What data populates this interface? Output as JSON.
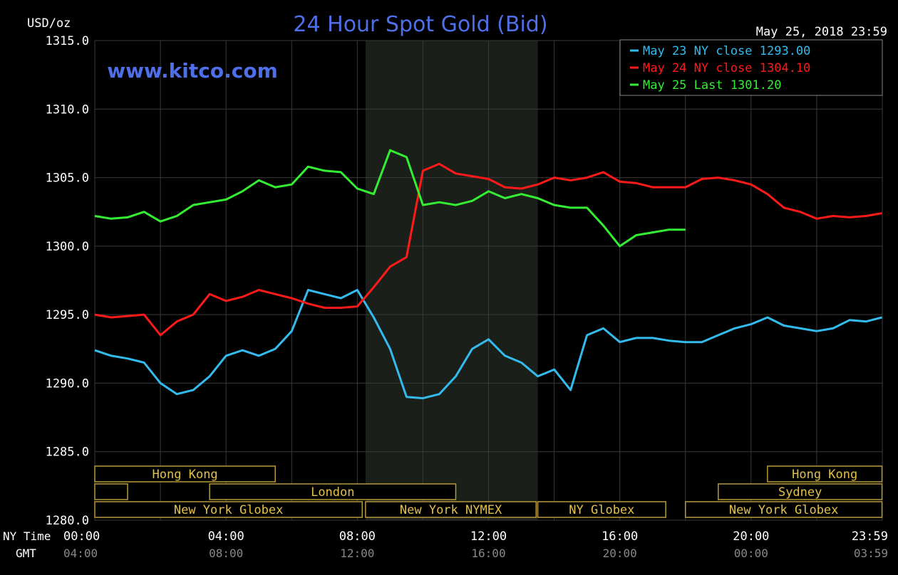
{
  "chart_data": {
    "type": "line",
    "title": "24 Hour Spot Gold (Bid)",
    "watermark": "www.kitco.com",
    "timestamp": "May 25, 2018 23:59",
    "ylabel": "USD/oz",
    "ylim": [
      1280,
      1315
    ],
    "yticks": [
      "1280.0",
      "1285.0",
      "1290.0",
      "1295.0",
      "1300.0",
      "1305.0",
      "1310.0",
      "1315.0"
    ],
    "xlim": [
      0,
      24
    ],
    "xrow_label": "NY Time",
    "xrow2_label": "GMT",
    "xticks_ny": [
      "00:00",
      "04:00",
      "08:00",
      "12:00",
      "16:00",
      "20:00",
      "23:59"
    ],
    "xticks_gmt": [
      "04:00",
      "08:00",
      "12:00",
      "16:00",
      "20:00",
      "00:00",
      "03:59"
    ],
    "shaded_range_hours": [
      8.25,
      13.5
    ],
    "grid": true,
    "legend_position": "top-right",
    "series": [
      {
        "name": "May 23 NY close 1293.00",
        "color": "#33bbee",
        "x": [
          0,
          0.5,
          1,
          1.5,
          2,
          2.5,
          3,
          3.5,
          4,
          4.5,
          5,
          5.5,
          6,
          6.5,
          7,
          7.5,
          8,
          8.5,
          9,
          9.5,
          10,
          10.5,
          11,
          11.5,
          12,
          12.5,
          13,
          13.5,
          14,
          14.5,
          15,
          15.5,
          16,
          16.5,
          17,
          17.5,
          18,
          18.5,
          19,
          19.5,
          20,
          20.5,
          21,
          21.5,
          22,
          22.5,
          23,
          23.5,
          23.99
        ],
        "y": [
          1292.4,
          1292.0,
          1291.8,
          1291.5,
          1290.0,
          1289.2,
          1289.5,
          1290.5,
          1292.0,
          1292.4,
          1292.0,
          1292.5,
          1293.8,
          1296.8,
          1296.5,
          1296.2,
          1296.8,
          1294.8,
          1292.5,
          1289.0,
          1288.9,
          1289.2,
          1290.5,
          1292.5,
          1293.2,
          1292.0,
          1291.5,
          1290.5,
          1291.0,
          1289.5,
          1293.5,
          1294.0,
          1293.0,
          1293.3,
          1293.3,
          1293.1,
          1293.0,
          1293.0,
          1293.5,
          1294.0,
          1294.3,
          1294.8,
          1294.2,
          1294.0,
          1293.8,
          1294.0,
          1294.6,
          1294.5,
          1294.8
        ]
      },
      {
        "name": "May 24 NY close 1304.10",
        "color": "#ff1a1a",
        "x": [
          0,
          0.5,
          1,
          1.5,
          2,
          2.5,
          3,
          3.5,
          4,
          4.5,
          5,
          5.5,
          6,
          6.5,
          7,
          7.5,
          8,
          8.5,
          9,
          9.5,
          10,
          10.5,
          11,
          11.5,
          12,
          12.5,
          13,
          13.5,
          14,
          14.5,
          15,
          15.5,
          16,
          16.5,
          17,
          17.5,
          18,
          18.5,
          19,
          19.5,
          20,
          20.5,
          21,
          21.5,
          22,
          22.5,
          23,
          23.5,
          23.99
        ],
        "y": [
          1295.0,
          1294.8,
          1294.9,
          1295.0,
          1293.5,
          1294.5,
          1295.0,
          1296.5,
          1296.0,
          1296.3,
          1296.8,
          1296.5,
          1296.2,
          1295.8,
          1295.5,
          1295.5,
          1295.6,
          1297.0,
          1298.5,
          1299.2,
          1305.5,
          1306.0,
          1305.3,
          1305.1,
          1304.9,
          1304.3,
          1304.2,
          1304.5,
          1305.0,
          1304.8,
          1305.0,
          1305.4,
          1304.7,
          1304.6,
          1304.3,
          1304.3,
          1304.3,
          1304.9,
          1305.0,
          1304.8,
          1304.5,
          1303.8,
          1302.8,
          1302.5,
          1302.0,
          1302.2,
          1302.1,
          1302.2,
          1302.4
        ]
      },
      {
        "name": "May 25 Last 1301.20",
        "color": "#33ee33",
        "x": [
          0,
          0.5,
          1,
          1.5,
          2,
          2.5,
          3,
          3.5,
          4,
          4.5,
          5,
          5.5,
          6,
          6.5,
          7,
          7.5,
          8,
          8.5,
          9,
          9.5,
          10,
          10.5,
          11,
          11.5,
          12,
          12.5,
          13,
          13.5,
          14,
          14.5,
          15,
          15.5,
          16,
          16.5,
          17,
          17.5,
          18
        ],
        "y": [
          1302.2,
          1302.0,
          1302.1,
          1302.5,
          1301.8,
          1302.2,
          1303.0,
          1303.2,
          1303.4,
          1304.0,
          1304.8,
          1304.3,
          1304.5,
          1305.8,
          1305.5,
          1305.4,
          1304.2,
          1303.8,
          1307.0,
          1306.5,
          1303.0,
          1303.2,
          1303.0,
          1303.3,
          1304.0,
          1303.5,
          1303.8,
          1303.5,
          1303.0,
          1302.8,
          1302.8,
          1301.5,
          1300.0,
          1300.8,
          1301.0,
          1301.2,
          1301.2
        ]
      }
    ],
    "sessions": [
      {
        "label": "Hong Kong",
        "row": 0,
        "start": 0,
        "end": 5.5
      },
      {
        "label": "",
        "row": 1,
        "start": 0,
        "end": 1
      },
      {
        "label": "London",
        "row": 1,
        "start": 3.5,
        "end": 11
      },
      {
        "label": "New York Globex",
        "row": 2,
        "start": 0,
        "end": 8.15
      },
      {
        "label": "New York NYMEX",
        "row": 2,
        "start": 8.25,
        "end": 13.45
      },
      {
        "label": "NY Globex",
        "row": 2,
        "start": 13.5,
        "end": 17.4
      },
      {
        "label": "Hong Kong",
        "row": 0,
        "start": 20.5,
        "end": 23.99
      },
      {
        "label": "Sydney",
        "row": 1,
        "start": 19,
        "end": 23.99
      },
      {
        "label": "New York Globex",
        "row": 2,
        "start": 18,
        "end": 23.99
      }
    ]
  }
}
